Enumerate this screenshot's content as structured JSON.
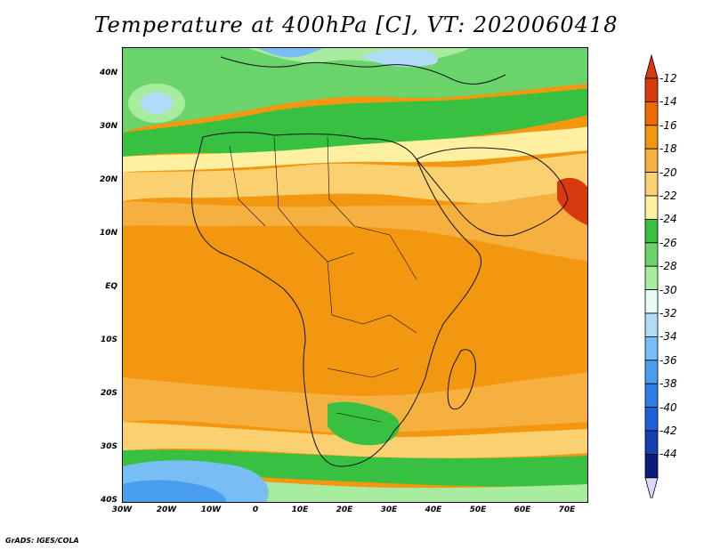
{
  "title": "Temperature at 400hPa [C], VT: 2020060418",
  "credit": "GrADS: IGES/COLA",
  "map": {
    "lon_range": [
      -30,
      75
    ],
    "lat_range": [
      -40,
      45
    ],
    "lat_ticks": [
      "40N",
      "30N",
      "20N",
      "10N",
      "EQ",
      "10S",
      "20S",
      "30S",
      "40S"
    ],
    "lon_ticks": [
      "30W",
      "20W",
      "10W",
      "0",
      "10E",
      "20E",
      "30E",
      "40E",
      "50E",
      "60E",
      "70E"
    ]
  },
  "colorbar": {
    "levels": [
      "-12",
      "-14",
      "-16",
      "-18",
      "-20",
      "-22",
      "-24",
      "-26",
      "-28",
      "-30",
      "-32",
      "-34",
      "-36",
      "-38",
      "-40",
      "-42",
      "-44"
    ],
    "colors": [
      "#d83a10",
      "#f06a00",
      "#f2970f",
      "#f5b040",
      "#fad070",
      "#fdf0a0",
      "#38c040",
      "#6ad46a",
      "#a8eca0",
      "#e6fbf2",
      "#b0dcf8",
      "#78bef4",
      "#4a9ef0",
      "#2e7ee8",
      "#1e60d8",
      "#1440b0",
      "#0a1c7c"
    ],
    "top_cap_color": "#d83a10",
    "bottom_cap_color": "#d8d8f8"
  }
}
